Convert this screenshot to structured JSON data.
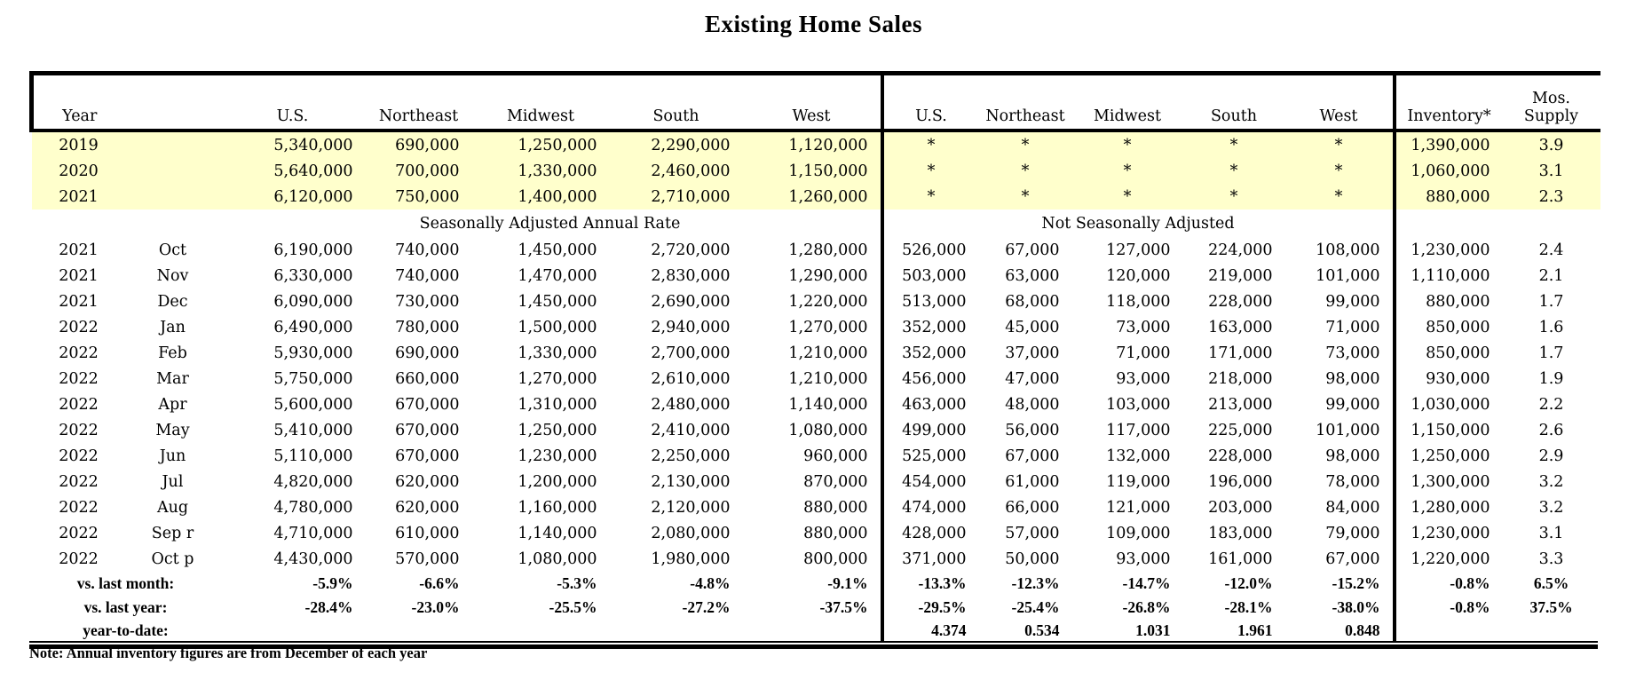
{
  "title": "Existing Home Sales",
  "note": "Note: Annual inventory figures are from December of each year",
  "header": {
    "year": "Year",
    "saar_cols": [
      "U.S.",
      "Northeast",
      "Midwest",
      "South",
      "West"
    ],
    "nsa_cols": [
      "U.S.",
      "Northeast",
      "Midwest",
      "South",
      "West"
    ],
    "inventory": "Inventory*",
    "mos_line1": "Mos.",
    "mos_line2": "Supply"
  },
  "group_labels": {
    "saar": "Seasonally Adjusted Annual Rate",
    "nsa": "Not Seasonally Adjusted"
  },
  "annual_rows": [
    {
      "year": "2019",
      "saar": [
        "5,340,000",
        "690,000",
        "1,250,000",
        "2,290,000",
        "1,120,000"
      ],
      "nsa": [
        "*",
        "*",
        "*",
        "*",
        "*"
      ],
      "inventory": "1,390,000",
      "mos_supply": "3.9"
    },
    {
      "year": "2020",
      "saar": [
        "5,640,000",
        "700,000",
        "1,330,000",
        "2,460,000",
        "1,150,000"
      ],
      "nsa": [
        "*",
        "*",
        "*",
        "*",
        "*"
      ],
      "inventory": "1,060,000",
      "mos_supply": "3.1"
    },
    {
      "year": "2021",
      "saar": [
        "6,120,000",
        "750,000",
        "1,400,000",
        "2,710,000",
        "1,260,000"
      ],
      "nsa": [
        "*",
        "*",
        "*",
        "*",
        "*"
      ],
      "inventory": "880,000",
      "mos_supply": "2.3"
    }
  ],
  "monthly_rows": [
    {
      "year": "2021",
      "month": "Oct",
      "saar": [
        "6,190,000",
        "740,000",
        "1,450,000",
        "2,720,000",
        "1,280,000"
      ],
      "nsa": [
        "526,000",
        "67,000",
        "127,000",
        "224,000",
        "108,000"
      ],
      "inventory": "1,230,000",
      "mos_supply": "2.4"
    },
    {
      "year": "2021",
      "month": "Nov",
      "saar": [
        "6,330,000",
        "740,000",
        "1,470,000",
        "2,830,000",
        "1,290,000"
      ],
      "nsa": [
        "503,000",
        "63,000",
        "120,000",
        "219,000",
        "101,000"
      ],
      "inventory": "1,110,000",
      "mos_supply": "2.1"
    },
    {
      "year": "2021",
      "month": "Dec",
      "saar": [
        "6,090,000",
        "730,000",
        "1,450,000",
        "2,690,000",
        "1,220,000"
      ],
      "nsa": [
        "513,000",
        "68,000",
        "118,000",
        "228,000",
        "99,000"
      ],
      "inventory": "880,000",
      "mos_supply": "1.7"
    },
    {
      "year": "2022",
      "month": "Jan",
      "saar": [
        "6,490,000",
        "780,000",
        "1,500,000",
        "2,940,000",
        "1,270,000"
      ],
      "nsa": [
        "352,000",
        "45,000",
        "73,000",
        "163,000",
        "71,000"
      ],
      "inventory": "850,000",
      "mos_supply": "1.6"
    },
    {
      "year": "2022",
      "month": "Feb",
      "saar": [
        "5,930,000",
        "690,000",
        "1,330,000",
        "2,700,000",
        "1,210,000"
      ],
      "nsa": [
        "352,000",
        "37,000",
        "71,000",
        "171,000",
        "73,000"
      ],
      "inventory": "850,000",
      "mos_supply": "1.7"
    },
    {
      "year": "2022",
      "month": "Mar",
      "saar": [
        "5,750,000",
        "660,000",
        "1,270,000",
        "2,610,000",
        "1,210,000"
      ],
      "nsa": [
        "456,000",
        "47,000",
        "93,000",
        "218,000",
        "98,000"
      ],
      "inventory": "930,000",
      "mos_supply": "1.9"
    },
    {
      "year": "2022",
      "month": "Apr",
      "saar": [
        "5,600,000",
        "670,000",
        "1,310,000",
        "2,480,000",
        "1,140,000"
      ],
      "nsa": [
        "463,000",
        "48,000",
        "103,000",
        "213,000",
        "99,000"
      ],
      "inventory": "1,030,000",
      "mos_supply": "2.2"
    },
    {
      "year": "2022",
      "month": "May",
      "saar": [
        "5,410,000",
        "670,000",
        "1,250,000",
        "2,410,000",
        "1,080,000"
      ],
      "nsa": [
        "499,000",
        "56,000",
        "117,000",
        "225,000",
        "101,000"
      ],
      "inventory": "1,150,000",
      "mos_supply": "2.6"
    },
    {
      "year": "2022",
      "month": "Jun",
      "saar": [
        "5,110,000",
        "670,000",
        "1,230,000",
        "2,250,000",
        "960,000"
      ],
      "nsa": [
        "525,000",
        "67,000",
        "132,000",
        "228,000",
        "98,000"
      ],
      "inventory": "1,250,000",
      "mos_supply": "2.9"
    },
    {
      "year": "2022",
      "month": "Jul",
      "saar": [
        "4,820,000",
        "620,000",
        "1,200,000",
        "2,130,000",
        "870,000"
      ],
      "nsa": [
        "454,000",
        "61,000",
        "119,000",
        "196,000",
        "78,000"
      ],
      "inventory": "1,300,000",
      "mos_supply": "3.2"
    },
    {
      "year": "2022",
      "month": "Aug",
      "saar": [
        "4,780,000",
        "620,000",
        "1,160,000",
        "2,120,000",
        "880,000"
      ],
      "nsa": [
        "474,000",
        "66,000",
        "121,000",
        "203,000",
        "84,000"
      ],
      "inventory": "1,280,000",
      "mos_supply": "3.2"
    },
    {
      "year": "2022",
      "month": "Sep r",
      "saar": [
        "4,710,000",
        "610,000",
        "1,140,000",
        "2,080,000",
        "880,000"
      ],
      "nsa": [
        "428,000",
        "57,000",
        "109,000",
        "183,000",
        "79,000"
      ],
      "inventory": "1,230,000",
      "mos_supply": "3.1"
    },
    {
      "year": "2022",
      "month": "Oct p",
      "saar": [
        "4,430,000",
        "570,000",
        "1,080,000",
        "1,980,000",
        "800,000"
      ],
      "nsa": [
        "371,000",
        "50,000",
        "93,000",
        "161,000",
        "67,000"
      ],
      "inventory": "1,220,000",
      "mos_supply": "3.3"
    }
  ],
  "summary_rows": [
    {
      "label": "vs. last month:",
      "saar": [
        "-5.9%",
        "-6.6%",
        "-5.3%",
        "-4.8%",
        "-9.1%"
      ],
      "nsa": [
        "-13.3%",
        "-12.3%",
        "-14.7%",
        "-12.0%",
        "-15.2%"
      ],
      "inventory": "-0.8%",
      "mos_supply": "6.5%"
    },
    {
      "label": "vs. last year:",
      "saar": [
        "-28.4%",
        "-23.0%",
        "-25.5%",
        "-27.2%",
        "-37.5%"
      ],
      "nsa": [
        "-29.5%",
        "-25.4%",
        "-26.8%",
        "-28.1%",
        "-38.0%"
      ],
      "inventory": "-0.8%",
      "mos_supply": "37.5%"
    },
    {
      "label": "year-to-date:",
      "saar": [
        "",
        "",
        "",
        "",
        ""
      ],
      "nsa": [
        "4.374",
        "0.534",
        "1.031",
        "1.961",
        "0.848"
      ],
      "inventory": "",
      "mos_supply": ""
    }
  ],
  "colors": {
    "highlight": "#ffffcc",
    "border": "#000000",
    "text": "#000000",
    "background": "#ffffff"
  }
}
